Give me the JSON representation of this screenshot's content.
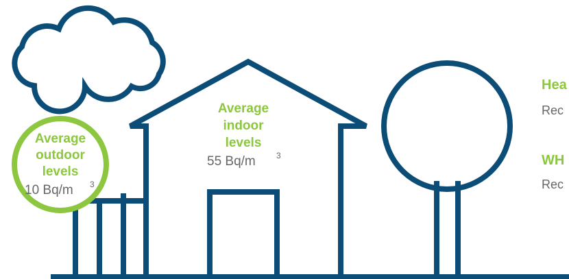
{
  "outdoor": {
    "label": [
      "Average",
      "outdoor",
      "levels"
    ],
    "value": "10 Bq/m",
    "exponent": "3"
  },
  "indoor": {
    "label": [
      "Average",
      "indoor",
      "levels"
    ],
    "value": "55 Bq/m",
    "exponent": "3"
  },
  "side": [
    {
      "heading": "Hea",
      "text": "Rec"
    },
    {
      "heading": "WH",
      "text": "Rec"
    }
  ]
}
